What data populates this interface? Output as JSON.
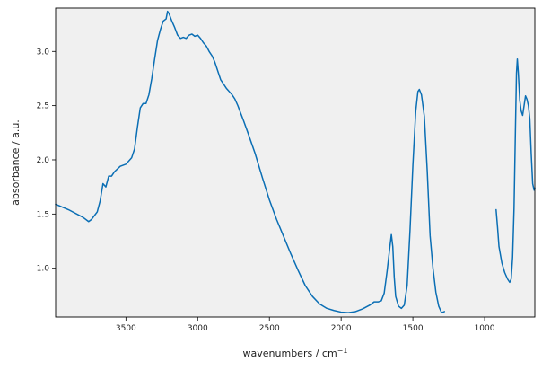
{
  "chart_data": {
    "type": "line",
    "title": "",
    "xlabel": "wavenumbers / cm",
    "xlabel_superscript": "−1",
    "ylabel": "absorbance / a.u.",
    "xlim": [
      3990,
      650
    ],
    "ylim": [
      0.55,
      3.4
    ],
    "x_inverted": true,
    "grid": false,
    "legend": "none",
    "background_color": "#f0f0f0",
    "x_ticks": [
      {
        "value": 3500,
        "label": "3500"
      },
      {
        "value": 3000,
        "label": "3000"
      },
      {
        "value": 2500,
        "label": "2500"
      },
      {
        "value": 2000,
        "label": "2000"
      },
      {
        "value": 1500,
        "label": "1500"
      },
      {
        "value": 1000,
        "label": "1000"
      }
    ],
    "y_ticks": [
      {
        "value": 1.0,
        "label": "1.0"
      },
      {
        "value": 1.5,
        "label": "1.5"
      },
      {
        "value": 2.0,
        "label": "2.0"
      },
      {
        "value": 2.5,
        "label": "2.5"
      },
      {
        "value": 3.0,
        "label": "3.0"
      }
    ],
    "series": [
      {
        "color": "#0a6eb4",
        "segments": [
          [
            [
              3990,
              1.59
            ],
            [
              3900,
              1.54
            ],
            [
              3800,
              1.47
            ],
            [
              3760,
              1.43
            ],
            [
              3740,
              1.45
            ],
            [
              3700,
              1.52
            ],
            [
              3680,
              1.62
            ],
            [
              3660,
              1.78
            ],
            [
              3640,
              1.75
            ],
            [
              3620,
              1.85
            ],
            [
              3600,
              1.85
            ],
            [
              3580,
              1.89
            ],
            [
              3540,
              1.94
            ],
            [
              3500,
              1.96
            ],
            [
              3460,
              2.02
            ],
            [
              3440,
              2.1
            ],
            [
              3420,
              2.3
            ],
            [
              3400,
              2.48
            ],
            [
              3380,
              2.52
            ],
            [
              3360,
              2.52
            ],
            [
              3340,
              2.6
            ],
            [
              3320,
              2.75
            ],
            [
              3300,
              2.93
            ],
            [
              3280,
              3.1
            ],
            [
              3260,
              3.2
            ],
            [
              3240,
              3.28
            ],
            [
              3220,
              3.3
            ],
            [
              3210,
              3.37
            ],
            [
              3200,
              3.35
            ],
            [
              3180,
              3.28
            ],
            [
              3160,
              3.22
            ],
            [
              3140,
              3.15
            ],
            [
              3120,
              3.12
            ],
            [
              3100,
              3.13
            ],
            [
              3080,
              3.12
            ],
            [
              3060,
              3.15
            ],
            [
              3040,
              3.16
            ],
            [
              3020,
              3.14
            ],
            [
              3000,
              3.15
            ],
            [
              2980,
              3.12
            ],
            [
              2960,
              3.08
            ],
            [
              2940,
              3.05
            ],
            [
              2920,
              3.0
            ],
            [
              2900,
              2.96
            ],
            [
              2880,
              2.9
            ],
            [
              2860,
              2.82
            ],
            [
              2840,
              2.74
            ],
            [
              2820,
              2.7
            ],
            [
              2800,
              2.66
            ],
            [
              2780,
              2.63
            ],
            [
              2760,
              2.6
            ],
            [
              2740,
              2.56
            ],
            [
              2720,
              2.5
            ],
            [
              2700,
              2.43
            ],
            [
              2680,
              2.36
            ],
            [
              2650,
              2.25
            ],
            [
              2600,
              2.06
            ],
            [
              2550,
              1.84
            ],
            [
              2500,
              1.63
            ],
            [
              2450,
              1.45
            ],
            [
              2400,
              1.29
            ],
            [
              2350,
              1.13
            ],
            [
              2300,
              0.98
            ],
            [
              2250,
              0.84
            ],
            [
              2200,
              0.74
            ],
            [
              2150,
              0.67
            ],
            [
              2100,
              0.63
            ],
            [
              2050,
              0.61
            ],
            [
              2000,
              0.595
            ],
            [
              1950,
              0.59
            ],
            [
              1900,
              0.6
            ],
            [
              1850,
              0.625
            ],
            [
              1800,
              0.66
            ],
            [
              1770,
              0.69
            ],
            [
              1740,
              0.69
            ],
            [
              1720,
              0.7
            ],
            [
              1700,
              0.77
            ],
            [
              1680,
              0.97
            ],
            [
              1660,
              1.2
            ],
            [
              1650,
              1.31
            ],
            [
              1640,
              1.2
            ],
            [
              1630,
              0.92
            ],
            [
              1620,
              0.74
            ],
            [
              1600,
              0.65
            ],
            [
              1580,
              0.63
            ],
            [
              1560,
              0.66
            ],
            [
              1540,
              0.84
            ],
            [
              1520,
              1.35
            ],
            [
              1500,
              1.95
            ],
            [
              1480,
              2.45
            ],
            [
              1465,
              2.63
            ],
            [
              1455,
              2.65
            ],
            [
              1440,
              2.6
            ],
            [
              1420,
              2.4
            ],
            [
              1400,
              1.9
            ],
            [
              1380,
              1.3
            ],
            [
              1360,
              1.0
            ],
            [
              1340,
              0.78
            ],
            [
              1320,
              0.65
            ],
            [
              1300,
              0.59
            ],
            [
              1280,
              0.6
            ]
          ],
          [
            [
              920,
              1.54
            ],
            [
              910,
              1.38
            ],
            [
              900,
              1.2
            ],
            [
              880,
              1.05
            ],
            [
              860,
              0.96
            ],
            [
              840,
              0.9
            ],
            [
              825,
              0.87
            ],
            [
              815,
              0.9
            ],
            [
              805,
              1.1
            ],
            [
              795,
              1.55
            ],
            [
              785,
              2.3
            ],
            [
              778,
              2.8
            ],
            [
              772,
              2.93
            ],
            [
              765,
              2.8
            ],
            [
              755,
              2.55
            ],
            [
              745,
              2.45
            ],
            [
              735,
              2.41
            ],
            [
              725,
              2.5
            ],
            [
              715,
              2.59
            ],
            [
              705,
              2.56
            ],
            [
              695,
              2.5
            ],
            [
              685,
              2.38
            ],
            [
              675,
              2.05
            ],
            [
              665,
              1.78
            ],
            [
              655,
              1.72
            ],
            [
              650,
              1.74
            ]
          ]
        ]
      }
    ]
  }
}
